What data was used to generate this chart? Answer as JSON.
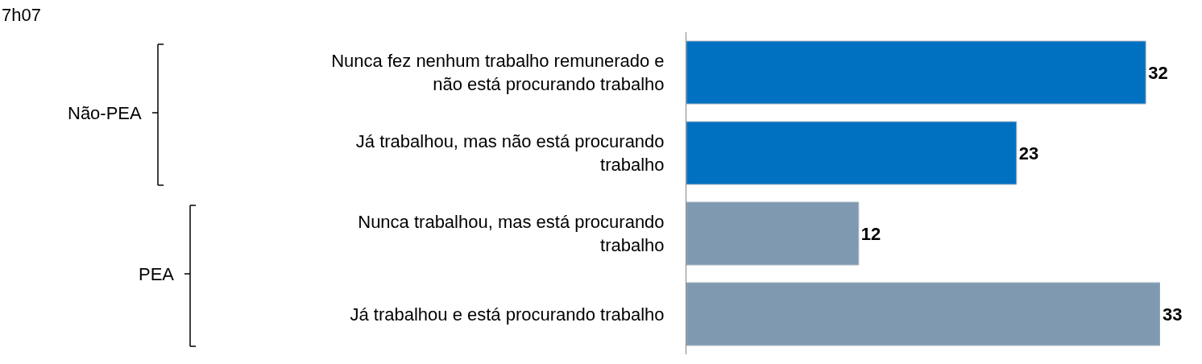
{
  "chart_data": {
    "type": "bar",
    "orientation": "horizontal",
    "categories": [
      "Nunca fez nenhum trabalho remunerado e não está procurando trabalho",
      "Já trabalhou, mas não está procurando trabalho",
      "Nunca trabalhou, mas está procurando trabalho",
      "Já trabalhou e está procurando trabalho"
    ],
    "values": [
      32,
      23,
      12,
      33
    ],
    "colors": [
      "#0070c0",
      "#0070c0",
      "#7f9ab0",
      "#7f9ab0"
    ],
    "data_labels": true,
    "annotations": [
      "7h07",
      "Não-PEA",
      "PEA"
    ]
  }
}
